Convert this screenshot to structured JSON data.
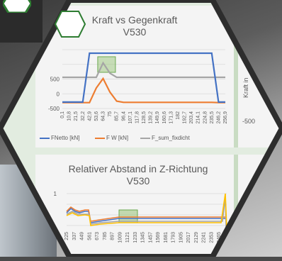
{
  "colors": {
    "fnetto": "#4472c4",
    "fw": "#ed7d31",
    "fsum": "#a5a5a5",
    "highlight": "#8fbe6a",
    "bg": "#e2ece0"
  },
  "chart_data": [
    {
      "type": "line",
      "title": "Kraft vs Gegenkraft",
      "subtitle": "V530",
      "x": [
        "0,1",
        "10,8",
        "21,5",
        "32,2",
        "42,9",
        "53,6",
        "64,3",
        "75",
        "85,7",
        "96,4",
        "107,1",
        "117,8",
        "128,5",
        "139,2",
        "149,9",
        "160,6",
        "171,3",
        "182",
        "192,7",
        "203,4",
        "214,1",
        "224,8",
        "235,5",
        "246,2",
        "256,9"
      ],
      "yticks": [
        "500",
        "0",
        "-500"
      ],
      "yticks_hidden_partial": [
        "0",
        "00"
      ],
      "series": [
        {
          "name": "FNetto [kN]",
          "values": [
            -280,
            -280,
            -280,
            -280,
            1380,
            1380,
            1380,
            1380,
            1380,
            1380,
            1380,
            1380,
            1380,
            1380,
            1380,
            1380,
            1380,
            1380,
            1380,
            1380,
            1380,
            1380,
            1380,
            -280,
            -280
          ]
        },
        {
          "name": "F W [kN]",
          "values": [
            -300,
            -300,
            -300,
            -300,
            -300,
            200,
            520,
            60,
            -250,
            -290,
            -290,
            -290,
            -290,
            -290,
            -290,
            -290,
            -290,
            -290,
            -290,
            -290,
            -290,
            -290,
            -290,
            -300,
            -300
          ]
        },
        {
          "name": "F_sum_fixdicht",
          "values": [
            560,
            560,
            560,
            560,
            560,
            560,
            1050,
            700,
            560,
            560,
            560,
            560,
            560,
            560,
            560,
            560,
            560,
            560,
            560,
            560,
            560,
            560,
            560,
            560,
            560
          ]
        }
      ]
    },
    {
      "type": "line",
      "title": "Relativer Abstand in Z-Richtung",
      "subtitle": "V530",
      "ytick": "1",
      "x": [
        "225",
        "337",
        "449",
        "561",
        "673",
        "785",
        "897",
        "1009",
        "1121",
        "1233",
        "1345",
        "1457",
        "1569",
        "1681",
        "1793",
        "1905",
        "2017",
        "2129",
        "2241",
        "2353",
        "2465",
        "2577"
      ]
    },
    {
      "type": "line",
      "ylabel": "Kraft in",
      "yticks": [
        "-500"
      ]
    }
  ]
}
